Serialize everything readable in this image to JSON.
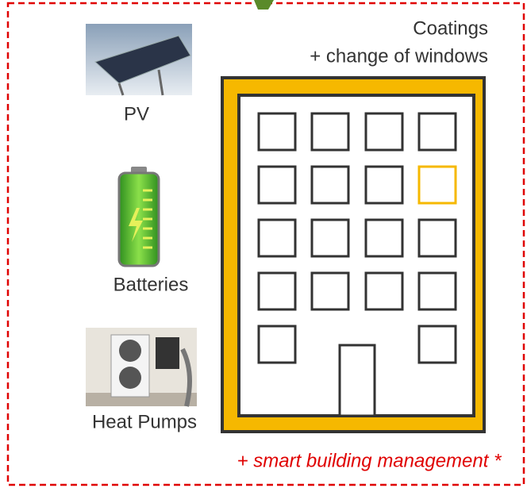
{
  "labels": {
    "coatings": "Coatings",
    "windows": "+ change of windows",
    "pv": "PV",
    "batteries": "Batteries",
    "heat_pumps": "Heat Pumps",
    "management": "+ smart building management *"
  }
}
